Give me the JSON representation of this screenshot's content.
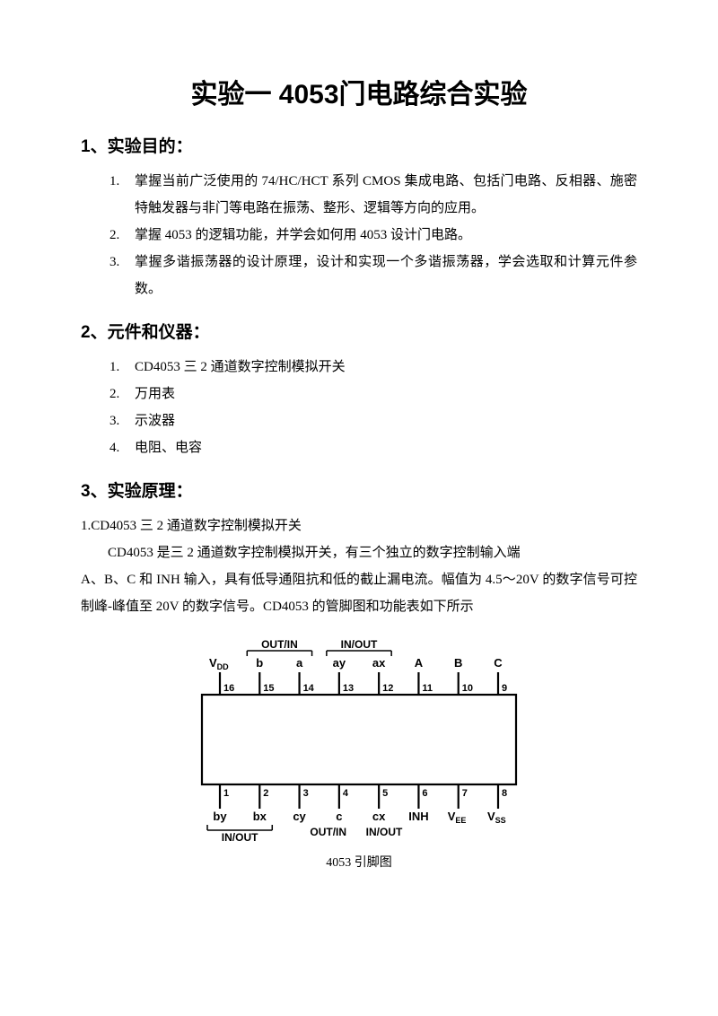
{
  "title": "实验一 4053门电路综合实验",
  "sections": {
    "purpose": {
      "heading": "1、实验目的：",
      "items": [
        "掌握当前广泛使用的 74/HC/HCT 系列 CMOS 集成电路、包括门电路、反相器、施密特触发器与非门等电路在振荡、整形、逻辑等方向的应用。",
        "掌握 4053 的逻辑功能，并学会如何用 4053 设计门电路。",
        "掌握多谐振荡器的设计原理，设计和实现一个多谐振荡器，学会选取和计算元件参数。"
      ]
    },
    "instruments": {
      "heading": "2、元件和仪器：",
      "items": [
        "CD4053 三 2 通道数字控制模拟开关",
        "万用表",
        "示波器",
        "电阻、电容"
      ]
    },
    "principle": {
      "heading": "3、实验原理：",
      "sub": "1.CD4053 三 2 通道数字控制模拟开关",
      "body1": "CD4053 是三 2 通道数字控制模拟开关，有三个独立的数字控制输入端",
      "body2": "A、B、C 和 INH 输入，具有低导通阻抗和低的截止漏电流。幅值为 4.5～20V 的数字信号可控制峰-峰值至 20V 的数字信号。CD4053 的管脚图和功能表如下所示"
    }
  },
  "diagram": {
    "caption": "4053 引脚图",
    "top_group_labels": {
      "left": "OUT/IN",
      "right": "IN/OUT"
    },
    "bottom_group_labels": {
      "left": "IN/OUT",
      "mid": "OUT/IN",
      "right": "IN/OUT"
    },
    "top_pins": [
      {
        "num": "16",
        "label": "V",
        "sub": "DD"
      },
      {
        "num": "15",
        "label": "b",
        "sub": ""
      },
      {
        "num": "14",
        "label": "a",
        "sub": ""
      },
      {
        "num": "13",
        "label": "ay",
        "sub": ""
      },
      {
        "num": "12",
        "label": "ax",
        "sub": ""
      },
      {
        "num": "11",
        "label": "A",
        "sub": ""
      },
      {
        "num": "10",
        "label": "B",
        "sub": ""
      },
      {
        "num": "9",
        "label": "C",
        "sub": ""
      }
    ],
    "bottom_pins": [
      {
        "num": "1",
        "label": "by",
        "sub": ""
      },
      {
        "num": "2",
        "label": "bx",
        "sub": ""
      },
      {
        "num": "3",
        "label": "cy",
        "sub": ""
      },
      {
        "num": "4",
        "label": "c",
        "sub": ""
      },
      {
        "num": "5",
        "label": "cx",
        "sub": ""
      },
      {
        "num": "6",
        "label": "INH",
        "sub": ""
      },
      {
        "num": "7",
        "label": "V",
        "sub": "EE"
      },
      {
        "num": "8",
        "label": "V",
        "sub": "SS"
      }
    ],
    "colors": {
      "stroke": "#000000",
      "bg": "#ffffff"
    },
    "line_width": 2.2
  }
}
